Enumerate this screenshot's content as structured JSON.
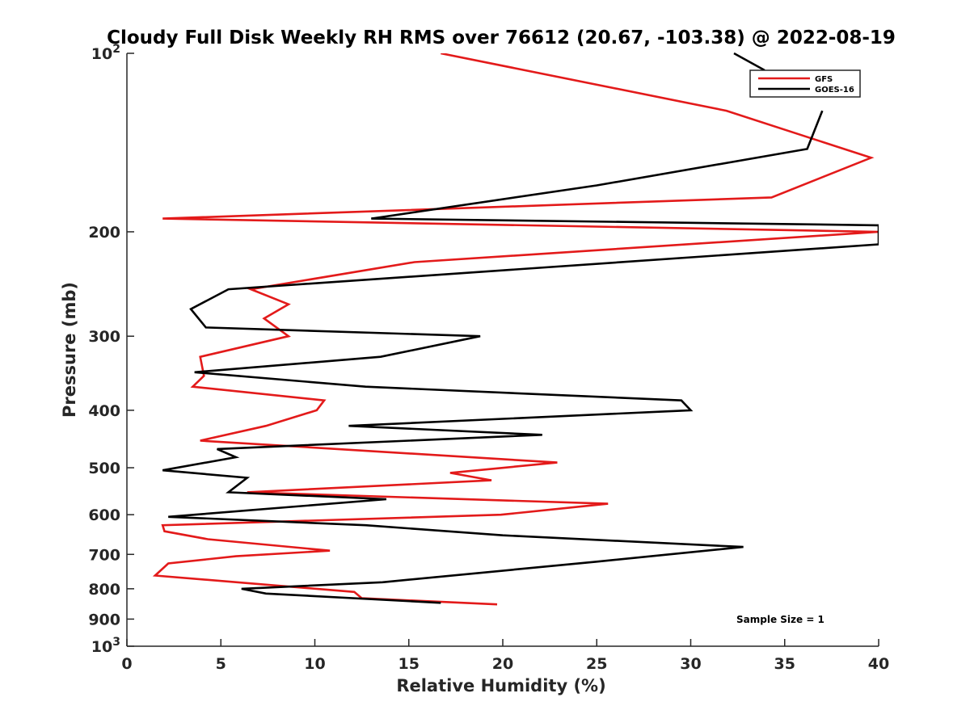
{
  "chart_data": {
    "type": "line",
    "title": "Cloudy Full Disk Weekly RH RMS over 76612 (20.67, -103.38) @ 2022-08-19",
    "xlabel": "Relative Humidity (%)",
    "ylabel": "Pressure (mb)",
    "xlim": [
      0,
      40
    ],
    "ylim": [
      100,
      1000
    ],
    "yscale": "log",
    "y_reversed": true,
    "grid": false,
    "legend_position": "top-right",
    "x_ticks": [
      {
        "value": 0,
        "label": "0"
      },
      {
        "value": 5,
        "label": "5"
      },
      {
        "value": 10,
        "label": "10"
      },
      {
        "value": 15,
        "label": "15"
      },
      {
        "value": 20,
        "label": "20"
      },
      {
        "value": 25,
        "label": "25"
      },
      {
        "value": 30,
        "label": "30"
      },
      {
        "value": 35,
        "label": "35"
      },
      {
        "value": 40,
        "label": "40"
      }
    ],
    "y_ticks": [
      {
        "value": 100,
        "label": "10",
        "sup": "2"
      },
      {
        "value": 200,
        "label": "200",
        "sup": ""
      },
      {
        "value": 300,
        "label": "300",
        "sup": ""
      },
      {
        "value": 400,
        "label": "400",
        "sup": ""
      },
      {
        "value": 500,
        "label": "500",
        "sup": ""
      },
      {
        "value": 600,
        "label": "600",
        "sup": ""
      },
      {
        "value": 700,
        "label": "700",
        "sup": ""
      },
      {
        "value": 800,
        "label": "800",
        "sup": ""
      },
      {
        "value": 900,
        "label": "900",
        "sup": ""
      },
      {
        "value": 1000,
        "label": "10",
        "sup": "3"
      }
    ],
    "series": [
      {
        "name": "GFS",
        "color": "#e31a1a",
        "points": [
          [
            16.7,
            100
          ],
          [
            31.9,
            125
          ],
          [
            39.6,
            150
          ],
          [
            34.3,
            175
          ],
          [
            1.9,
            190
          ],
          [
            40.0,
            200
          ],
          [
            15.3,
            225
          ],
          [
            6.6,
            250
          ],
          [
            8.6,
            265
          ],
          [
            7.3,
            280
          ],
          [
            8.6,
            300
          ],
          [
            3.9,
            325
          ],
          [
            4.1,
            350
          ],
          [
            3.5,
            365
          ],
          [
            10.5,
            385
          ],
          [
            10.1,
            400
          ],
          [
            7.4,
            425
          ],
          [
            3.9,
            450
          ],
          [
            22.9,
            490
          ],
          [
            17.2,
            510
          ],
          [
            19.4,
            525
          ],
          [
            6.4,
            550
          ],
          [
            25.6,
            575
          ],
          [
            19.9,
            600
          ],
          [
            1.9,
            625
          ],
          [
            2.0,
            640
          ],
          [
            4.3,
            660
          ],
          [
            10.8,
            690
          ],
          [
            5.8,
            705
          ],
          [
            2.2,
            725
          ],
          [
            1.5,
            760
          ],
          [
            12.1,
            810
          ],
          [
            12.5,
            830
          ],
          [
            19.7,
            850
          ]
        ]
      },
      {
        "name": "GOES-16",
        "color": "#000000",
        "points": [
          [
            37.0,
            125
          ],
          [
            36.2,
            145
          ],
          [
            25.0,
            167
          ],
          [
            13.0,
            190
          ],
          [
            40.0,
            195
          ],
          [
            40.0,
            210
          ],
          [
            5.4,
            250
          ],
          [
            3.4,
            270
          ],
          [
            4.2,
            290
          ],
          [
            18.8,
            300
          ],
          [
            13.5,
            325
          ],
          [
            3.6,
            345
          ],
          [
            12.7,
            365
          ],
          [
            29.5,
            385
          ],
          [
            30.0,
            400
          ],
          [
            11.8,
            425
          ],
          [
            22.1,
            440
          ],
          [
            4.8,
            465
          ],
          [
            5.8,
            480
          ],
          [
            1.9,
            505
          ],
          [
            6.4,
            520
          ],
          [
            5.4,
            550
          ],
          [
            13.8,
            565
          ],
          [
            2.2,
            605
          ],
          [
            12.7,
            625
          ],
          [
            20.0,
            650
          ],
          [
            32.8,
            680
          ],
          [
            25.0,
            720
          ],
          [
            13.6,
            780
          ],
          [
            6.1,
            800
          ],
          [
            7.4,
            815
          ],
          [
            16.7,
            845
          ]
        ]
      }
    ],
    "annotation": "Sample Size = 1"
  }
}
